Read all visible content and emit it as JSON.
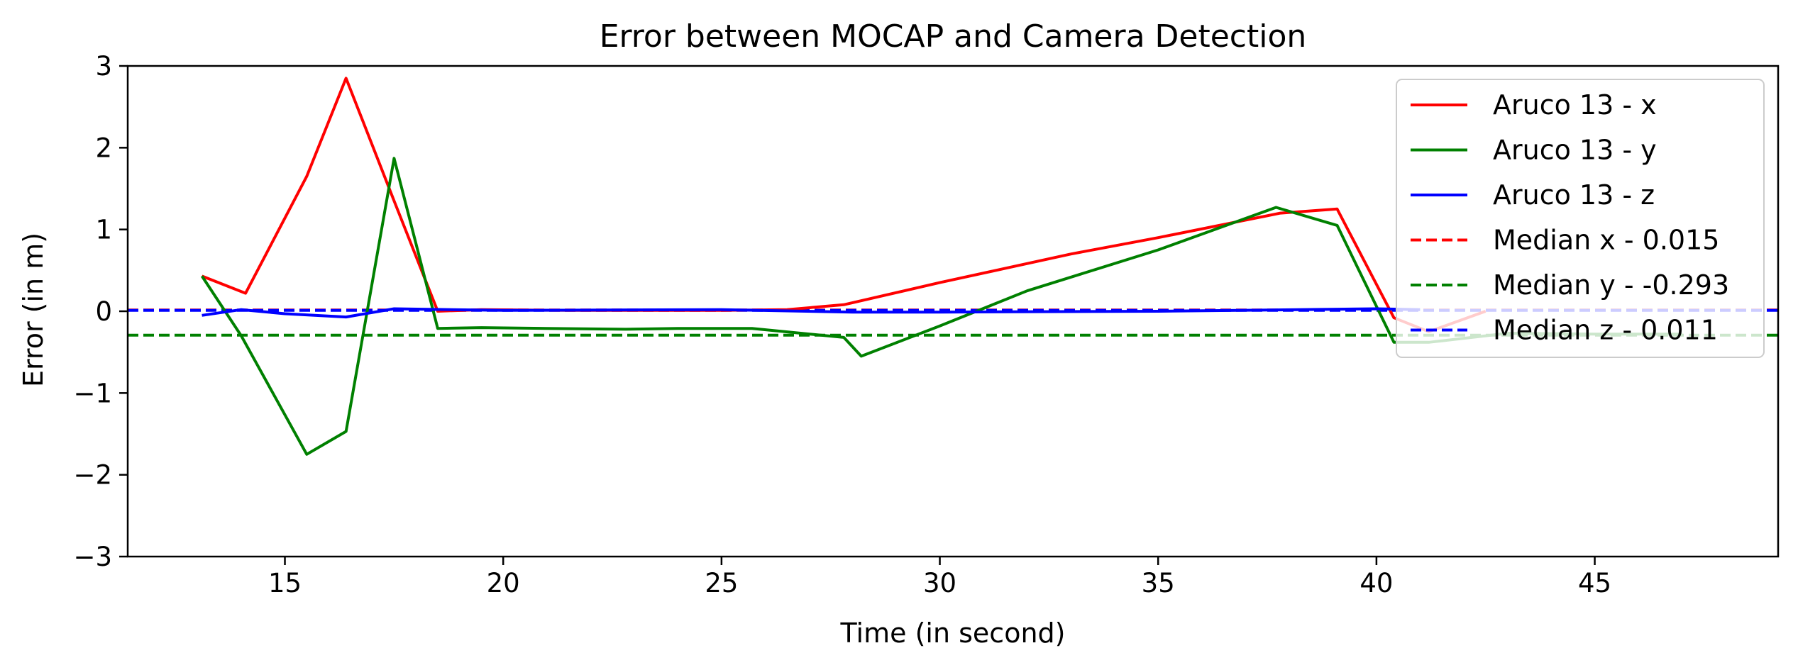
{
  "chart_data": {
    "type": "line",
    "title": "Error between MOCAP and Camera Detection",
    "xlabel": "Time (in second)",
    "ylabel": "Error (in m)",
    "xlim": [
      11.4,
      49.2
    ],
    "ylim": [
      -3,
      3
    ],
    "xticks": [
      15,
      20,
      25,
      30,
      35,
      40,
      45
    ],
    "xtick_labels": [
      "15",
      "20",
      "25",
      "30",
      "35",
      "40",
      "45"
    ],
    "yticks": [
      -3,
      -2,
      -1,
      0,
      1,
      2,
      3
    ],
    "ytick_labels": [
      "−3",
      "−2",
      "−1",
      "0",
      "1",
      "2",
      "3"
    ],
    "grid": false,
    "legend_position": "top-right",
    "series": [
      {
        "name": "Aruco 13 - x",
        "color": "#ff0000",
        "style": "solid",
        "x": [
          13.1,
          14.1,
          15.5,
          16.4,
          17.5,
          18.5,
          19.5,
          21.5,
          23.0,
          25.0,
          26.5,
          27.8,
          30.0,
          33.0,
          35.0,
          37.8,
          39.1,
          40.4,
          41.2,
          42.5
        ],
        "y": [
          0.43,
          0.22,
          1.65,
          2.85,
          1.35,
          0.0,
          0.02,
          0.01,
          0.01,
          0.01,
          0.02,
          0.08,
          0.35,
          0.7,
          0.9,
          1.2,
          1.25,
          -0.08,
          -0.25,
          0.0
        ]
      },
      {
        "name": "Aruco 13 - y",
        "color": "#008000",
        "style": "solid",
        "x": [
          13.1,
          14.0,
          15.5,
          16.4,
          17.5,
          18.5,
          19.5,
          21.0,
          22.8,
          24.0,
          25.7,
          27.8,
          28.2,
          30.0,
          32.0,
          35.0,
          37.7,
          39.1,
          40.4,
          41.2,
          43.0,
          45.0,
          47.0
        ],
        "y": [
          0.43,
          -0.3,
          -1.75,
          -1.47,
          1.87,
          -0.21,
          -0.2,
          -0.21,
          -0.22,
          -0.21,
          -0.21,
          -0.32,
          -0.55,
          -0.18,
          0.25,
          0.75,
          1.27,
          1.05,
          -0.38,
          -0.38,
          -0.27,
          -0.28,
          -0.28
        ]
      },
      {
        "name": "Aruco 13 - z",
        "color": "#0000ff",
        "style": "solid",
        "x": [
          13.1,
          14.0,
          15.0,
          16.4,
          17.5,
          20.0,
          25.0,
          28.0,
          30.0,
          35.0,
          40.0,
          41.0
        ],
        "y": [
          -0.05,
          0.02,
          -0.03,
          -0.07,
          0.03,
          0.01,
          0.02,
          -0.01,
          -0.01,
          0.0,
          0.03,
          0.02
        ]
      }
    ],
    "medians": [
      {
        "name": "Median x - 0.015",
        "color": "#ff0000",
        "style": "dashed",
        "value": 0.015
      },
      {
        "name": "Median y - -0.293",
        "color": "#008000",
        "style": "dashed",
        "value": -0.293
      },
      {
        "name": "Median z - 0.011",
        "color": "#0000ff",
        "style": "dashed",
        "value": 0.011
      }
    ]
  }
}
